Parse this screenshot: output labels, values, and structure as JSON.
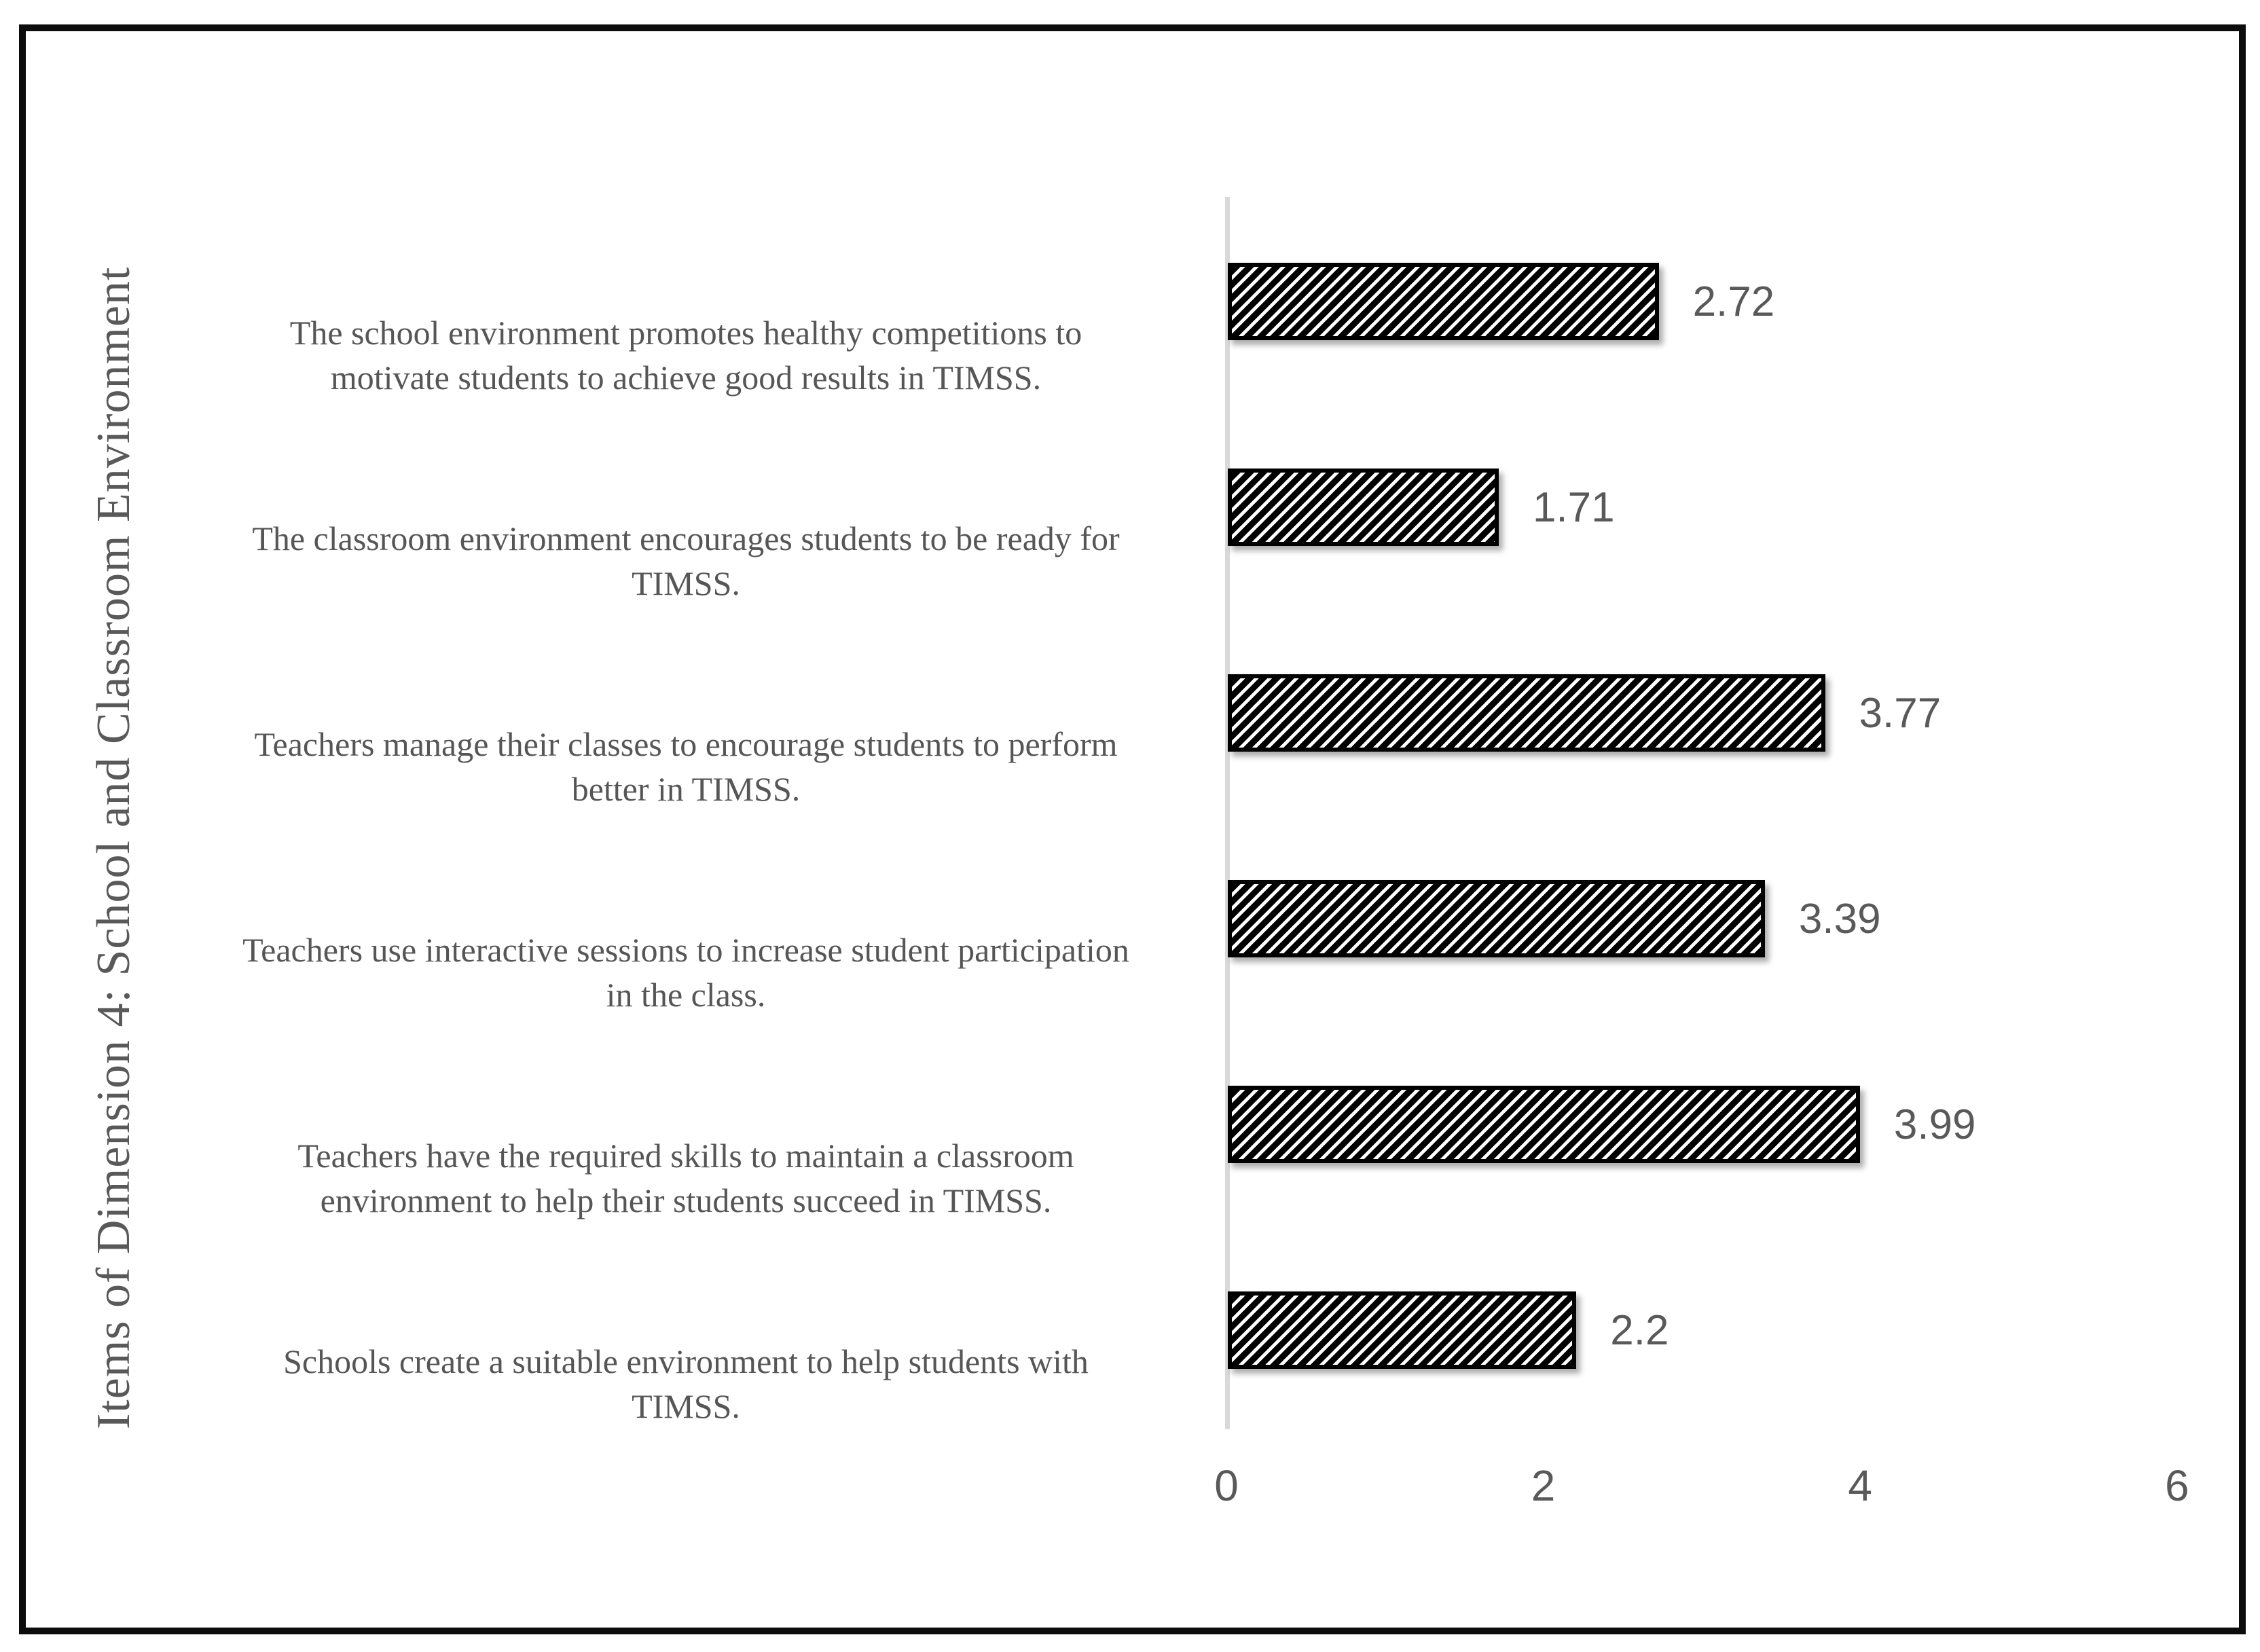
{
  "figure": {
    "background": "#ffffff",
    "border_color": "#0c0c0c"
  },
  "chart_data": {
    "type": "bar",
    "orientation": "horizontal",
    "title": "",
    "xlabel": "",
    "ylabel": "Items of Dimension 4: School and Classroom Environment",
    "xlim": [
      0,
      6
    ],
    "x_ticks": [
      "0",
      "2",
      "4",
      "6"
    ],
    "grid": false,
    "legend": false,
    "bar_fill": "black-diagonal-hatch",
    "hatch_foreground": "#000000",
    "hatch_background": "#ffffff",
    "axis_line_color": "#d9d9d9",
    "text_color": "#595959",
    "categories": [
      "The school environment promotes healthy competitions to motivate students to achieve good results in TIMSS.",
      "The classroom environment encourages students to be ready for TIMSS.",
      "Teachers manage their classes to encourage students to perform better in TIMSS.",
      "Teachers use interactive sessions to increase student participation in the class.",
      "Teachers have the required skills to maintain a classroom environment to help their students succeed in TIMSS.",
      "Schools create a suitable environment to help students with TIMSS."
    ],
    "category_lines": [
      [
        "The school environment promotes healthy competitions to",
        "motivate students to achieve good results in TIMSS."
      ],
      [
        "The classroom environment encourages students to be ready for",
        "TIMSS."
      ],
      [
        "Teachers manage their classes to encourage students to perform",
        "better in TIMSS."
      ],
      [
        "Teachers use interactive sessions to increase student participation",
        "in the class."
      ],
      [
        "Teachers have the required skills to maintain a classroom",
        "environment to help their students succeed in TIMSS."
      ],
      [
        "Schools create a suitable environment to help students with",
        "TIMSS."
      ]
    ],
    "values": [
      2.72,
      1.71,
      3.77,
      3.39,
      3.99,
      2.2
    ],
    "value_labels": [
      "2.72",
      "1.71",
      "3.77",
      "3.39",
      "3.99",
      "2.2"
    ]
  }
}
